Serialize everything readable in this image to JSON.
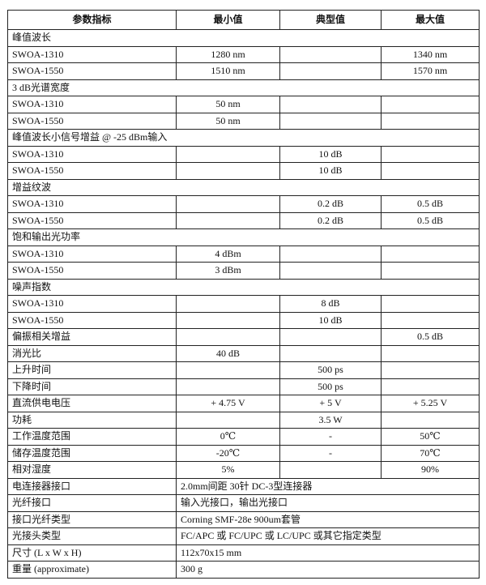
{
  "headers": [
    "参数指标",
    "最小值",
    "典型值",
    "最大值"
  ],
  "rows": [
    {
      "type": "section",
      "label": "峰值波长"
    },
    {
      "type": "data",
      "cells": [
        "SWOA-1310",
        "1280 nm",
        "",
        "1340 nm"
      ]
    },
    {
      "type": "data",
      "cells": [
        "SWOA-1550",
        "1510 nm",
        "",
        "1570 nm"
      ]
    },
    {
      "type": "section",
      "label": "3 dB光谱宽度"
    },
    {
      "type": "data",
      "cells": [
        "SWOA-1310",
        "50 nm",
        "",
        ""
      ]
    },
    {
      "type": "data",
      "cells": [
        "SWOA-1550",
        "50 nm",
        "",
        ""
      ]
    },
    {
      "type": "section",
      "label": "峰值波长小信号增益  @ -25 dBm输入"
    },
    {
      "type": "data",
      "cells": [
        "SWOA-1310",
        "",
        "10 dB",
        ""
      ]
    },
    {
      "type": "data",
      "cells": [
        "SWOA-1550",
        "",
        "10 dB",
        ""
      ]
    },
    {
      "type": "section",
      "label": "增益纹波"
    },
    {
      "type": "data",
      "cells": [
        "SWOA-1310",
        "",
        "0.2 dB",
        "0.5 dB"
      ]
    },
    {
      "type": "data",
      "cells": [
        "SWOA-1550",
        "",
        "0.2 dB",
        "0.5 dB"
      ]
    },
    {
      "type": "section",
      "label": "饱和输出光功率"
    },
    {
      "type": "data",
      "cells": [
        "SWOA-1310",
        "4 dBm",
        "",
        ""
      ]
    },
    {
      "type": "data",
      "cells": [
        "SWOA-1550",
        "3 dBm",
        "",
        ""
      ]
    },
    {
      "type": "section",
      "label": "噪声指数"
    },
    {
      "type": "data",
      "cells": [
        "SWOA-1310",
        "",
        "8 dB",
        ""
      ]
    },
    {
      "type": "data",
      "cells": [
        "SWOA-1550",
        "",
        "10 dB",
        ""
      ]
    },
    {
      "type": "data",
      "cells": [
        "偏振相关增益",
        "",
        "",
        "0.5 dB"
      ]
    },
    {
      "type": "data",
      "cells": [
        "消光比",
        "40 dB",
        "",
        ""
      ]
    },
    {
      "type": "data",
      "cells": [
        "上升时间",
        "",
        "500 ps",
        ""
      ]
    },
    {
      "type": "data",
      "cells": [
        "下降时间",
        "",
        "500 ps",
        ""
      ]
    },
    {
      "type": "data",
      "cells": [
        "直流供电电压",
        "+ 4.75 V",
        "+ 5 V",
        "+ 5.25 V"
      ]
    },
    {
      "type": "data",
      "cells": [
        "功耗",
        "",
        "3.5 W",
        ""
      ]
    },
    {
      "type": "data",
      "cells": [
        "工作温度范围",
        "0℃",
        "-",
        "50℃"
      ]
    },
    {
      "type": "data",
      "cells": [
        "储存温度范围",
        "-20℃",
        "-",
        "70℃"
      ]
    },
    {
      "type": "data",
      "cells": [
        "相对湿度",
        "5%",
        "",
        "90%"
      ]
    },
    {
      "type": "span",
      "cells": [
        "电连接器接口",
        "2.0mm间距  30针  DC-3型连接器"
      ]
    },
    {
      "type": "span",
      "cells": [
        "光纤接口",
        "输入光接口，输出光接口"
      ]
    },
    {
      "type": "span",
      "cells": [
        "接口光纤类型",
        "Corning  SMF-28e    900um套管"
      ]
    },
    {
      "type": "span",
      "cells": [
        "光接头类型",
        "FC/APC  或  FC/UPC 或  LC/UPC  或其它指定类型"
      ]
    },
    {
      "type": "span",
      "cells": [
        "尺寸  (L x W x H)",
        "112x70x15 mm"
      ]
    },
    {
      "type": "span",
      "cells": [
        "重量  (approximate)",
        "300 g"
      ]
    }
  ]
}
